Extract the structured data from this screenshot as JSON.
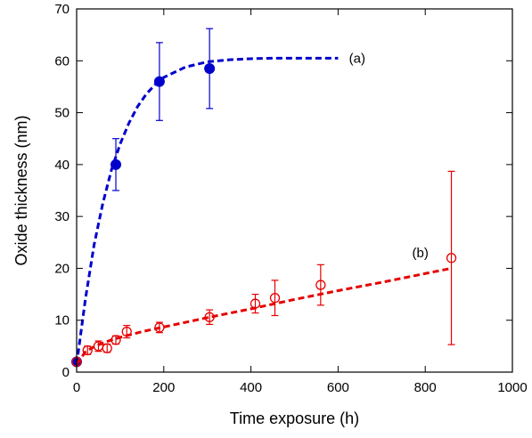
{
  "chart_data": {
    "type": "scatter",
    "xlabel": "Time exposure (h)",
    "ylabel": "Oxide thickness (nm)",
    "xlim": [
      0,
      1000
    ],
    "ylim": [
      0,
      70
    ],
    "x_ticks": [
      "0",
      "200",
      "400",
      "600",
      "800",
      "1000"
    ],
    "y_ticks": [
      "0",
      "10",
      "20",
      "30",
      "40",
      "50",
      "60",
      "70"
    ],
    "grid": false,
    "legend": "none",
    "annotations": [
      "(a)",
      "(b)"
    ],
    "series": [
      {
        "color": "#0000cc",
        "marker": "filled-circle",
        "points": [
          {
            "x": 0,
            "y": 2,
            "yerr": 0
          },
          {
            "x": 90,
            "y": 40,
            "yerr": 5
          },
          {
            "x": 190,
            "y": 56,
            "yerr": 7.5
          },
          {
            "x": 305,
            "y": 58.5,
            "yerr": 7.7
          }
        ],
        "fit": {
          "style": "dashed",
          "x": [
            0,
            20,
            40,
            60,
            80,
            100,
            120,
            140,
            160,
            180,
            200,
            250,
            300,
            350,
            400,
            450,
            500,
            550,
            600
          ],
          "y": [
            1.5,
            14,
            24.5,
            32.5,
            39,
            44,
            48,
            51.2,
            53.6,
            55.4,
            56.8,
            58.8,
            59.8,
            60.2,
            60.4,
            60.5,
            60.5,
            60.5,
            60.5
          ]
        }
      },
      {
        "color": "#e60000",
        "marker": "open-circle",
        "points": [
          {
            "x": 0,
            "y": 2,
            "yerr": 0
          },
          {
            "x": 25,
            "y": 4.2,
            "yerr": 0.8
          },
          {
            "x": 50,
            "y": 5,
            "yerr": 1
          },
          {
            "x": 70,
            "y": 4.6,
            "yerr": 0.8
          },
          {
            "x": 90,
            "y": 6.2,
            "yerr": 0.8
          },
          {
            "x": 115,
            "y": 7.8,
            "yerr": 1.2
          },
          {
            "x": 190,
            "y": 8.6,
            "yerr": 1
          },
          {
            "x": 305,
            "y": 10.6,
            "yerr": 1.4
          },
          {
            "x": 410,
            "y": 13.2,
            "yerr": 1.8
          },
          {
            "x": 455,
            "y": 14.3,
            "yerr": 3.4
          },
          {
            "x": 560,
            "y": 16.8,
            "yerr": 3.9
          },
          {
            "x": 860,
            "y": 22,
            "yerr": 16.7
          }
        ],
        "fit": {
          "style": "dashed",
          "x": [
            0,
            20,
            40,
            60,
            80,
            100,
            150,
            200,
            300,
            400,
            500,
            600,
            700,
            800,
            860
          ],
          "y": [
            1.5,
            3.9,
            4.9,
            5.6,
            6.2,
            6.7,
            7.8,
            8.7,
            10.5,
            12.2,
            14,
            15.7,
            17.3,
            19,
            20
          ]
        }
      }
    ]
  }
}
